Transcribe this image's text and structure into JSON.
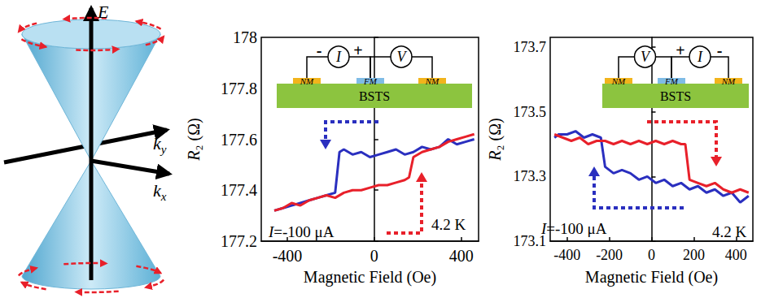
{
  "diagram": {
    "axis_labels": [
      {
        "text": "E"
      },
      {
        "text": "k",
        "sub": "y"
      },
      {
        "text": "k",
        "sub": "x"
      }
    ]
  },
  "chart_data": [
    {
      "type": "line",
      "x_label": "Magnetic Field (Oe)",
      "y_label": "R₂ (Ω)",
      "xlim": [
        -520,
        480
      ],
      "xticks": [
        -400,
        0,
        400
      ],
      "ylim": [
        177.2,
        178
      ],
      "yticks": [
        177.2,
        177.4,
        177.6,
        177.8,
        178
      ],
      "annotations": [
        "I=-100 μA",
        "4.2 K"
      ],
      "inset": {
        "substrate": "BSTS",
        "contacts": [
          "NM",
          "FM",
          "NM"
        ],
        "meters": [
          "I",
          "V"
        ],
        "polarity": [
          "-",
          "+"
        ]
      },
      "series": [
        {
          "color": "#2a2fbf",
          "x": [
            460,
            420,
            380,
            340,
            300,
            260,
            220,
            180,
            140,
            100,
            60,
            20,
            -20,
            -60,
            -100,
            -140,
            -160,
            -180,
            -220,
            -260,
            -300,
            -340,
            -380,
            -420,
            -460
          ],
          "values": [
            177.6,
            177.59,
            177.58,
            177.6,
            177.57,
            177.56,
            177.57,
            177.55,
            177.54,
            177.56,
            177.55,
            177.54,
            177.53,
            177.55,
            177.54,
            177.56,
            177.55,
            177.39,
            177.38,
            177.37,
            177.36,
            177.35,
            177.34,
            177.33,
            177.32
          ]
        },
        {
          "color": "#e8202a",
          "x": [
            -460,
            -420,
            -380,
            -340,
            -300,
            -260,
            -220,
            -180,
            -140,
            -100,
            -60,
            -20,
            20,
            60,
            100,
            140,
            160,
            180,
            220,
            260,
            300,
            340,
            380,
            420,
            460
          ],
          "values": [
            177.32,
            177.33,
            177.35,
            177.34,
            177.36,
            177.37,
            177.38,
            177.37,
            177.39,
            177.4,
            177.4,
            177.41,
            177.42,
            177.42,
            177.43,
            177.44,
            177.45,
            177.53,
            177.55,
            177.56,
            177.57,
            177.59,
            177.6,
            177.61,
            177.62
          ]
        }
      ]
    },
    {
      "type": "line",
      "x_label": "Magnetic Field (Oe)",
      "y_label": "R₂ (Ω)",
      "xlim": [
        -480,
        480
      ],
      "xticks": [
        -400,
        -200,
        0,
        200,
        400
      ],
      "ylim": [
        173.1,
        173.73
      ],
      "yticks": [
        173.1,
        173.3,
        173.5,
        173.7
      ],
      "annotations": [
        "I=-100 μA",
        "4.2 K"
      ],
      "inset": {
        "substrate": "BSTS",
        "contacts": [
          "NM",
          "FM",
          "NM"
        ],
        "meters": [
          "V",
          "I"
        ],
        "polarity": [
          "+",
          "-"
        ]
      },
      "series": [
        {
          "color": "#2a2fbf",
          "x": [
            460,
            420,
            380,
            340,
            300,
            260,
            220,
            180,
            140,
            100,
            60,
            20,
            -20,
            -60,
            -100,
            -140,
            -180,
            -220,
            -240,
            -280,
            -320,
            -360,
            -400,
            -440,
            -460
          ],
          "values": [
            173.24,
            173.22,
            173.25,
            173.24,
            173.26,
            173.25,
            173.27,
            173.26,
            173.28,
            173.27,
            173.29,
            173.28,
            173.3,
            173.29,
            173.31,
            173.32,
            173.31,
            173.33,
            173.42,
            173.43,
            173.42,
            173.44,
            173.43,
            173.43,
            173.42
          ]
        },
        {
          "color": "#e8202a",
          "x": [
            -460,
            -420,
            -380,
            -340,
            -300,
            -260,
            -220,
            -180,
            -140,
            -100,
            -60,
            -20,
            20,
            60,
            100,
            140,
            160,
            180,
            220,
            260,
            300,
            340,
            380,
            420,
            460
          ],
          "values": [
            173.43,
            173.42,
            173.41,
            173.42,
            173.4,
            173.41,
            173.41,
            173.4,
            173.41,
            173.4,
            173.41,
            173.4,
            173.41,
            173.4,
            173.41,
            173.4,
            173.4,
            173.29,
            173.28,
            173.27,
            173.28,
            173.26,
            173.25,
            173.26,
            173.25
          ]
        }
      ]
    }
  ]
}
